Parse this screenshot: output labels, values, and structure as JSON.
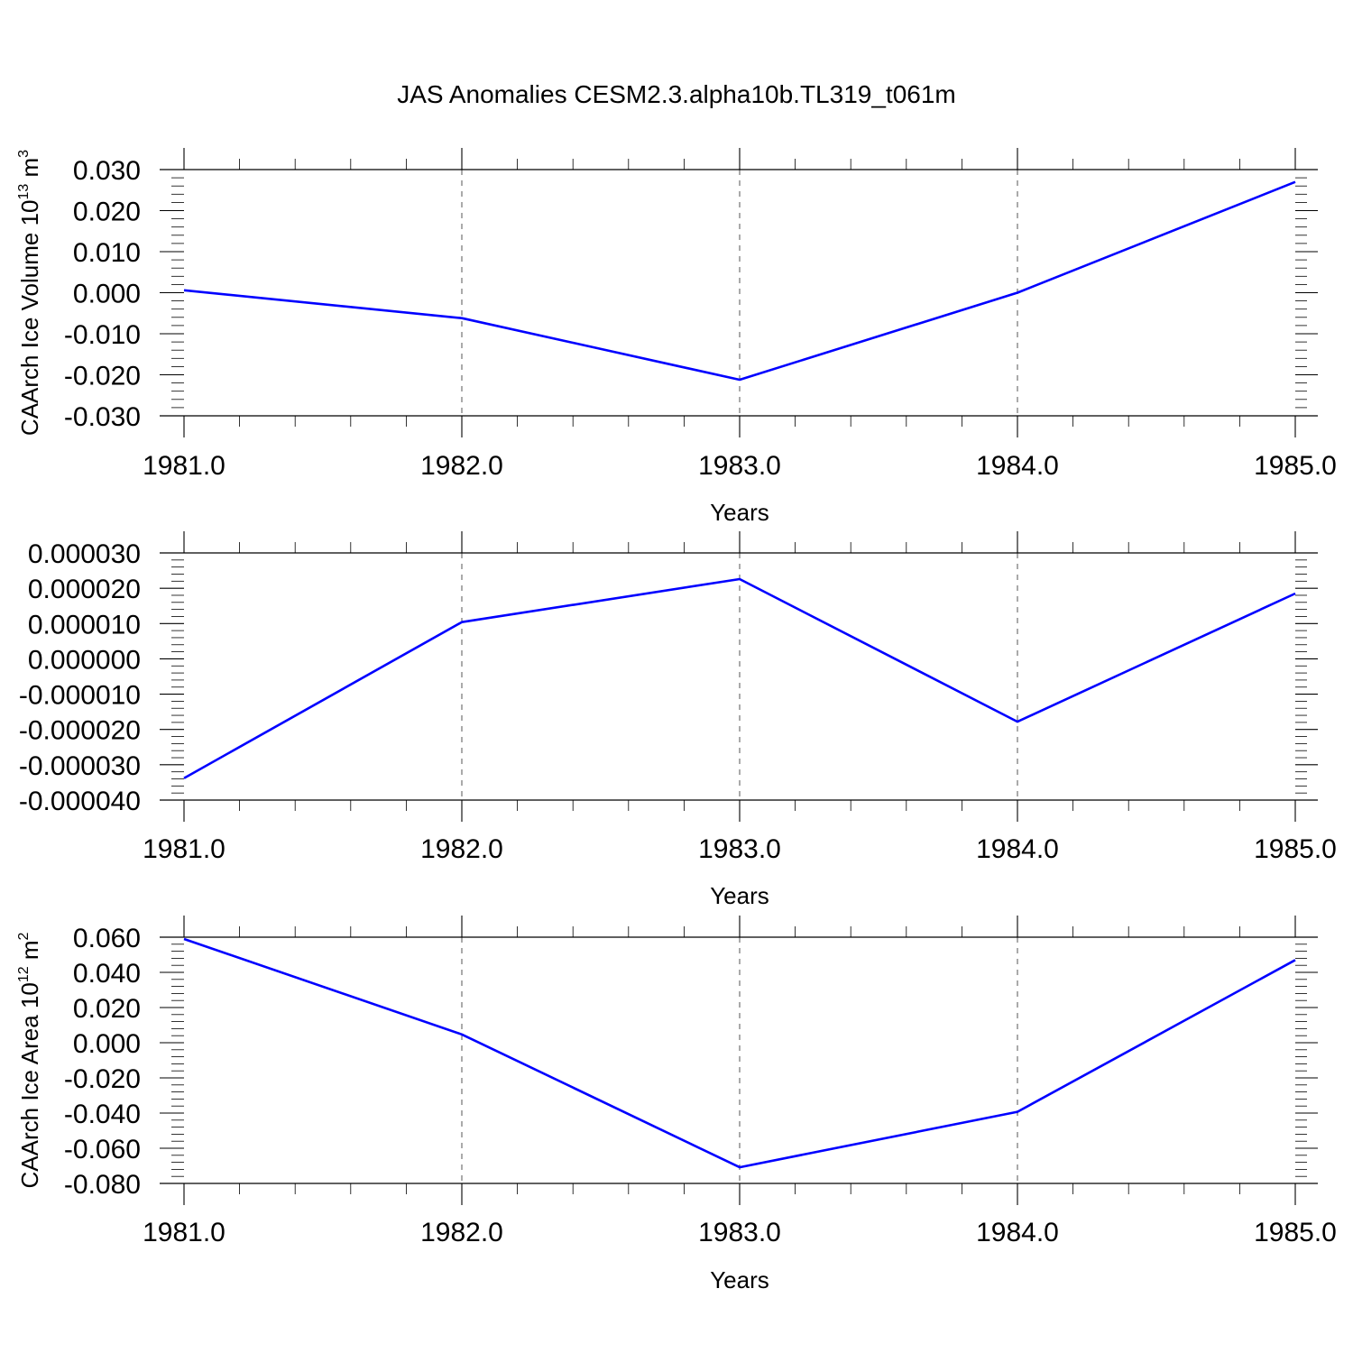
{
  "title": "JAS Anomalies CESM2.3.alpha10b.TL319_t061m",
  "colors": {
    "series": "#0000ff",
    "axis": "#000000",
    "grid": "#555555"
  },
  "chart_data": [
    {
      "type": "line",
      "title": "",
      "xlabel": "Years",
      "ylabel_main": "CAArch Ice Volume 10",
      "ylabel_exp": "13",
      "ylabel_unit": " m",
      "ylabel_unit_exp": "3",
      "xlim": [
        1981.0,
        1985.0
      ],
      "ylim": [
        -0.03,
        0.03
      ],
      "x_ticks": [
        "1981.0",
        "1982.0",
        "1983.0",
        "1984.0",
        "1985.0"
      ],
      "y_ticks": [
        "-0.030",
        "-0.020",
        "-0.010",
        "0.000",
        "0.010",
        "0.020",
        "0.030"
      ],
      "grid": "vertical dashed at major x ticks",
      "series": [
        {
          "x": [
            1981.0,
            1982.0,
            1983.0,
            1984.0,
            1985.0
          ],
          "values": [
            0.0006,
            -0.0062,
            -0.0212,
            0.0,
            0.027
          ]
        }
      ]
    },
    {
      "type": "line",
      "title": "",
      "xlabel": "Years",
      "ylabel_main": "",
      "ylabel_exp": "",
      "ylabel_unit": "",
      "ylabel_unit_exp": "",
      "xlim": [
        1981.0,
        1985.0
      ],
      "ylim": [
        -4e-05,
        3e-05
      ],
      "x_ticks": [
        "1981.0",
        "1982.0",
        "1983.0",
        "1984.0",
        "1985.0"
      ],
      "y_ticks": [
        "-0.000040",
        "-0.000030",
        "-0.000020",
        "-0.000010",
        "0.000000",
        "0.000010",
        "0.000020",
        "0.000030"
      ],
      "grid": "vertical dashed at major x ticks",
      "series": [
        {
          "x": [
            1981.0,
            1982.0,
            1983.0,
            1984.0,
            1985.0
          ],
          "values": [
            -3.38e-05,
            1.04e-05,
            2.26e-05,
            -1.78e-05,
            1.85e-05
          ]
        }
      ]
    },
    {
      "type": "line",
      "title": "",
      "xlabel": "Years",
      "ylabel_main": "CAArch Ice Area 10",
      "ylabel_exp": "12",
      "ylabel_unit": " m",
      "ylabel_unit_exp": "2",
      "xlim": [
        1981.0,
        1985.0
      ],
      "ylim": [
        -0.08,
        0.06
      ],
      "x_ticks": [
        "1981.0",
        "1982.0",
        "1983.0",
        "1984.0",
        "1985.0"
      ],
      "y_ticks": [
        "-0.080",
        "-0.060",
        "-0.040",
        "-0.020",
        "0.000",
        "0.020",
        "0.040",
        "0.060"
      ],
      "grid": "vertical dashed at major x ticks",
      "series": [
        {
          "x": [
            1981.0,
            1982.0,
            1983.0,
            1984.0,
            1985.0
          ],
          "values": [
            0.059,
            0.0047,
            -0.0708,
            -0.0393,
            0.047
          ]
        }
      ]
    }
  ]
}
